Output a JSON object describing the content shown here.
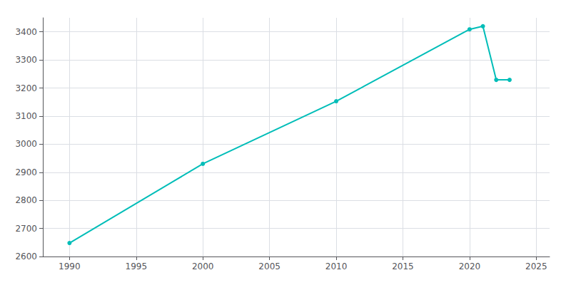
{
  "chart_data": {
    "type": "line",
    "x": [
      1990,
      2000,
      2010,
      2020,
      2021,
      2022,
      2023
    ],
    "values": [
      2648,
      2930,
      3153,
      3409,
      3420,
      3229,
      3229
    ],
    "color": "#00bdb8",
    "marker": "circle",
    "xlim": [
      1988,
      2026
    ],
    "ylim": [
      2600,
      3450
    ],
    "xticks": [
      1990,
      1995,
      2000,
      2005,
      2010,
      2015,
      2020,
      2025
    ],
    "yticks": [
      2600,
      2700,
      2800,
      2900,
      3000,
      3100,
      3200,
      3300,
      3400
    ],
    "grid": true
  }
}
